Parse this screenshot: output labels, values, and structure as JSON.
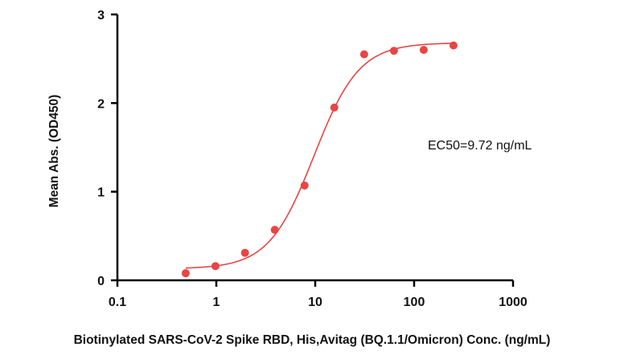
{
  "chart_data": {
    "type": "scatter",
    "title": "",
    "xlabel": "Biotinylated SARS-CoV-2 Spike RBD, His,Avitag (BQ.1.1/Omicron) Conc. (ng/mL)",
    "ylabel": "Mean Abs. (OD450)",
    "xscale": "log",
    "xlim": [
      0.1,
      1000
    ],
    "ylim": [
      0,
      3
    ],
    "x_ticks": [
      "0.1",
      "1",
      "10",
      "100",
      "1000"
    ],
    "y_ticks": [
      "0",
      "1",
      "2",
      "3"
    ],
    "grid": false,
    "legend": "none",
    "annotation": "EC50=9.72 ng/mL",
    "color": "#e84545",
    "series": [
      {
        "x": [
          0.49,
          0.98,
          1.95,
          3.9,
          7.8,
          15.6,
          31.25,
          62.5,
          125,
          250
        ],
        "y": [
          0.08,
          0.16,
          0.31,
          0.57,
          1.07,
          1.95,
          2.55,
          2.59,
          2.6,
          2.65
        ]
      }
    ],
    "fit_curve": {
      "model": "4PL",
      "bottom": 0.13,
      "top": 2.68,
      "ec50": 9.72,
      "hill": 1.9,
      "x_range": [
        0.49,
        250
      ]
    }
  }
}
